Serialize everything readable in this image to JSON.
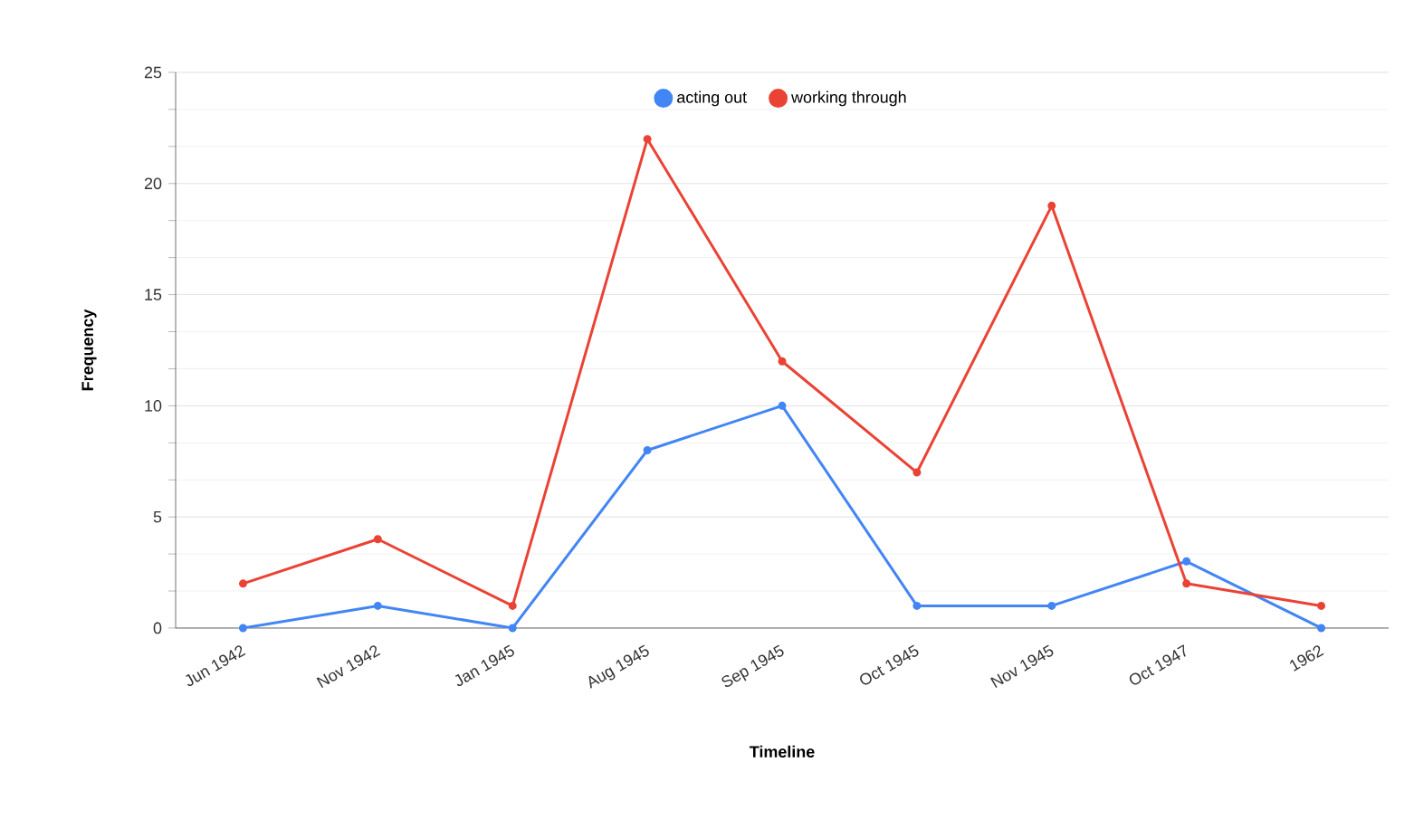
{
  "chart_data": {
    "type": "line",
    "xlabel": "Timeline",
    "ylabel": "Frequency",
    "categories": [
      "Jun 1942",
      "Nov 1942",
      "Jan 1945",
      "Aug 1945",
      "Sep 1945",
      "Oct 1945",
      "Nov 1945",
      "Oct 1947",
      "1962"
    ],
    "series": [
      {
        "name": "acting out",
        "color": "#4285f4",
        "values": [
          0,
          1,
          0,
          8,
          10,
          1,
          1,
          3,
          0
        ]
      },
      {
        "name": "working through",
        "color": "#ea4335",
        "values": [
          2,
          4,
          1,
          22,
          12,
          7,
          19,
          2,
          1
        ]
      }
    ],
    "ylim": [
      0,
      25
    ],
    "yticks": [
      0,
      5,
      10,
      15,
      20,
      25
    ],
    "grid": "y",
    "legend": "top",
    "marker": "circle"
  }
}
